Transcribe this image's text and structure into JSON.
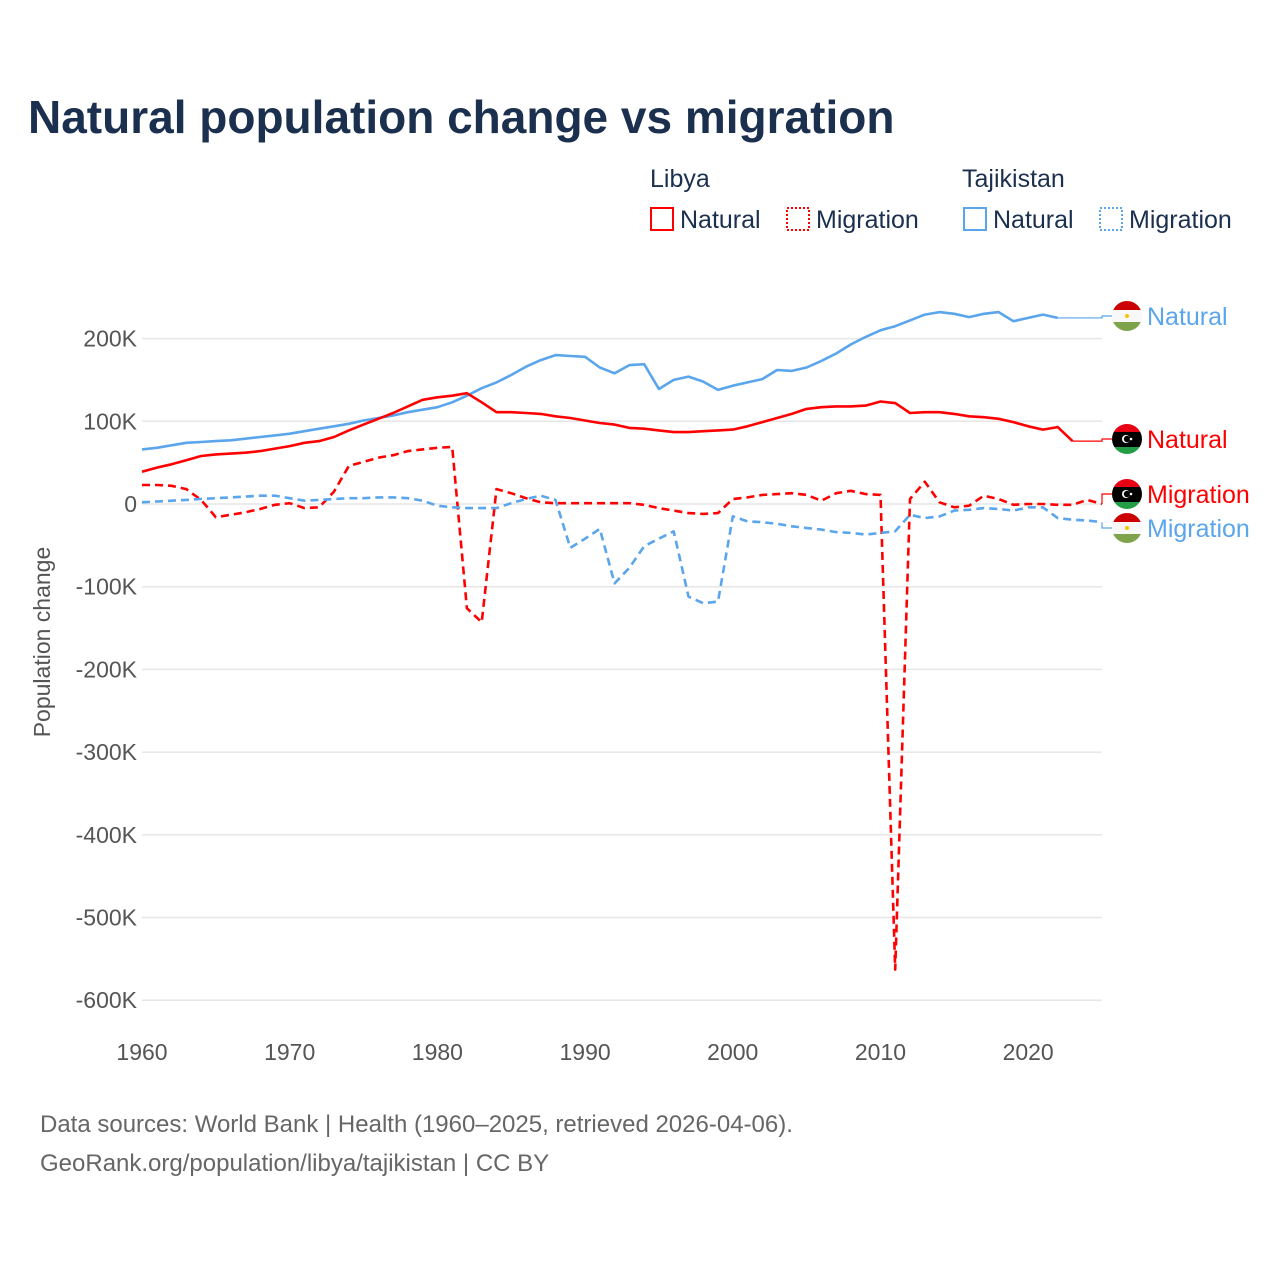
{
  "colors": {
    "libya": "#ff0000",
    "tajikistan": "#5aa5ec",
    "title": "#1b2f4e",
    "grid": "#e6e6e6"
  },
  "chart_data": {
    "type": "line",
    "title": "Natural population change vs migration",
    "xlabel": "",
    "ylabel": "Population change",
    "xlim": [
      1960,
      2025
    ],
    "ylim": [
      -600000,
      260000
    ],
    "grid": true,
    "x_ticks": [
      "1960",
      "1970",
      "1980",
      "1990",
      "2000",
      "2010",
      "2020"
    ],
    "y_ticks": [
      {
        "value": 200000,
        "label": "200K"
      },
      {
        "value": 100000,
        "label": "100K"
      },
      {
        "value": 0,
        "label": "0"
      },
      {
        "value": -100000,
        "label": "-100K"
      },
      {
        "value": -200000,
        "label": "-200K"
      },
      {
        "value": -300000,
        "label": "-300K"
      },
      {
        "value": -400000,
        "label": "-400K"
      },
      {
        "value": -500000,
        "label": "-500K"
      },
      {
        "value": -600000,
        "label": "-600K"
      }
    ],
    "legend": {
      "placement": "top-right",
      "groups": [
        {
          "country": "Libya",
          "items": [
            "Natural",
            "Migration"
          ]
        },
        {
          "country": "Tajikistan",
          "items": [
            "Natural",
            "Migration"
          ]
        }
      ]
    },
    "series": [
      {
        "name": "Tajikistan Natural",
        "country": "tajikistan",
        "style": "solid",
        "end_label": "Natural",
        "start_year": 1960,
        "values": [
          66,
          68,
          71,
          74,
          75,
          76,
          77,
          79,
          81,
          83,
          85,
          88,
          91,
          94,
          97,
          101,
          104,
          107,
          111,
          114,
          117,
          123,
          131,
          140,
          147,
          156,
          166,
          174,
          180,
          179,
          178,
          165,
          158,
          168,
          169,
          139,
          150,
          154,
          148,
          138,
          143,
          147,
          151,
          162,
          161,
          165,
          173,
          182,
          193,
          202,
          210,
          215,
          222,
          229,
          232,
          230,
          226,
          230,
          232,
          221,
          225,
          229,
          225
        ]
      },
      {
        "name": "Libya Natural",
        "country": "libya",
        "style": "solid",
        "end_label": "Natural",
        "start_year": 1960,
        "values": [
          39,
          44,
          48,
          53,
          58,
          60,
          61,
          62,
          64,
          67,
          70,
          74,
          76,
          81,
          89,
          96,
          103,
          110,
          118,
          126,
          129,
          131,
          134,
          123,
          111,
          111,
          110,
          109,
          106,
          104,
          101,
          98,
          96,
          92,
          91,
          89,
          87,
          87,
          88,
          89,
          90,
          94,
          99,
          104,
          109,
          115,
          117,
          118,
          118,
          119,
          124,
          122,
          110,
          111,
          111,
          109,
          106,
          105,
          103,
          99,
          94,
          90,
          93,
          76
        ]
      },
      {
        "name": "Libya Migration",
        "country": "libya",
        "style": "dashed",
        "end_label": "Migration",
        "start_year": 1960,
        "values": [
          23,
          23,
          22,
          18,
          5,
          -16,
          -13,
          -10,
          -6,
          -1,
          1,
          -5,
          -4,
          15,
          46,
          51,
          56,
          59,
          64,
          66,
          68,
          69,
          -126,
          -143,
          18,
          13,
          7,
          2,
          1,
          1,
          1,
          1,
          1,
          1,
          -1,
          -5,
          -8,
          -11,
          -12,
          -11,
          6,
          8,
          11,
          12,
          13,
          11,
          4,
          13,
          16,
          12,
          11,
          -563,
          6,
          27,
          2,
          -4,
          -2,
          10,
          6,
          -1,
          0,
          0,
          -1,
          -1,
          5,
          0
        ]
      },
      {
        "name": "Tajikistan Migration",
        "country": "tajikistan",
        "style": "dashed",
        "end_label": "Migration",
        "start_year": 1960,
        "values": [
          2,
          3,
          4,
          5,
          6,
          7,
          8,
          9,
          10,
          10,
          7,
          4,
          5,
          6,
          7,
          7,
          8,
          8,
          7,
          4,
          -2,
          -4,
          -5,
          -5,
          -5,
          1,
          6,
          10,
          5,
          -53,
          -42,
          -30,
          -96,
          -77,
          -51,
          -42,
          -33,
          -112,
          -120,
          -118,
          -15,
          -21,
          -22,
          -24,
          -27,
          -29,
          -31,
          -34,
          -35,
          -37,
          -35,
          -33,
          -13,
          -17,
          -15,
          -8,
          -7,
          -5,
          -6,
          -8,
          -4,
          -4,
          -17,
          -19,
          -20,
          -22
        ]
      }
    ],
    "value_unit": "thousands"
  },
  "source": {
    "line1": "Data sources: World Bank | Health (1960–2025, retrieved 2026-04-06).",
    "line2": "GeoRank.org/population/libya/tajikistan | CC BY"
  }
}
